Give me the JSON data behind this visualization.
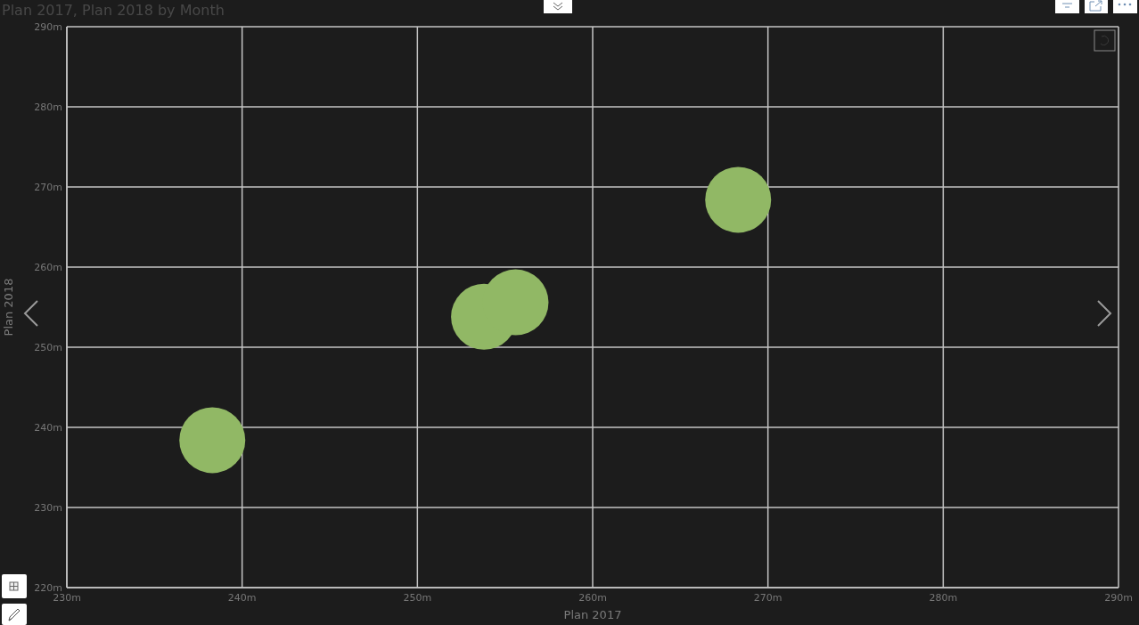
{
  "chart_data": {
    "type": "scatter",
    "title": "Plan 2017, Plan 2018 by Month",
    "xlabel": "Plan 2017",
    "ylabel": "Plan 2018",
    "x": [
      238.3,
      253.8,
      255.6,
      268.3
    ],
    "values": [
      238.4,
      253.8,
      255.6,
      268.4
    ],
    "color": "#91b865",
    "marker": "circle",
    "grid": true,
    "xlim": [
      230,
      290
    ],
    "xticks": [
      {
        "value": 230,
        "label": "230m"
      },
      {
        "value": 240,
        "label": "240m"
      },
      {
        "value": 250,
        "label": "250m"
      },
      {
        "value": 260,
        "label": "260m"
      },
      {
        "value": 270,
        "label": "270m"
      },
      {
        "value": 280,
        "label": "280m"
      },
      {
        "value": 290,
        "label": "290m"
      }
    ],
    "ylim": [
      220,
      290
    ],
    "yticks": [
      {
        "value": 220,
        "label": "220m"
      },
      {
        "value": 230,
        "label": "230m"
      },
      {
        "value": 240,
        "label": "240m"
      },
      {
        "value": 250,
        "label": "250m"
      },
      {
        "value": 260,
        "label": "260m"
      },
      {
        "value": 270,
        "label": "270m"
      },
      {
        "value": 280,
        "label": "280m"
      },
      {
        "value": 290,
        "label": "290m"
      }
    ]
  }
}
